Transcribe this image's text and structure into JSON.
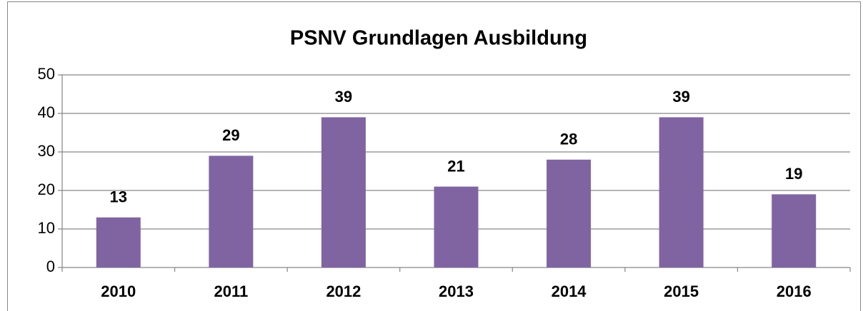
{
  "chart_data": {
    "type": "bar",
    "title": "PSNV Grundlagen Ausbildung",
    "categories": [
      "2010",
      "2011",
      "2012",
      "2013",
      "2014",
      "2015",
      "2016"
    ],
    "values": [
      13,
      29,
      39,
      21,
      28,
      39,
      19
    ],
    "color": "#8064a2",
    "ylim": [
      0,
      50
    ],
    "yticks": [
      0,
      10,
      20,
      30,
      40,
      50
    ],
    "grid": true
  }
}
